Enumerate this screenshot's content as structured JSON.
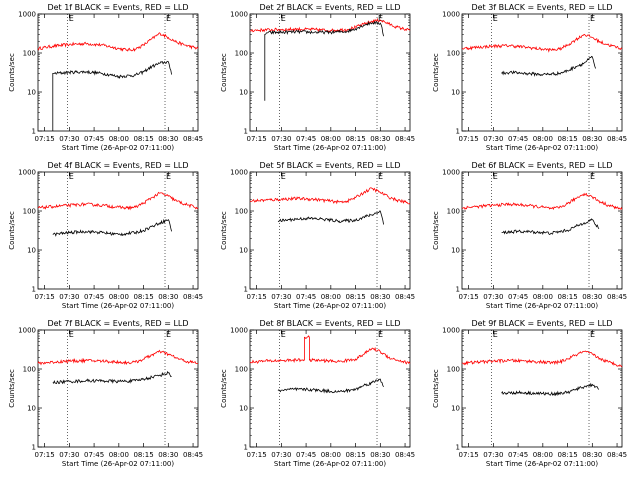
{
  "chart_data": [
    {
      "type": "line",
      "title": "Det 1f BLACK = Events, RED = LLD",
      "xlabel": "Start Time (26-Apr-02 07:11:00)",
      "ylabel": "Counts/sec",
      "yscale": "log",
      "ylim": [
        1,
        1000
      ],
      "y_ticks": [
        "1",
        "10",
        "100",
        "1000"
      ],
      "x_ticks": [
        "07:15",
        "07:30",
        "07:45",
        "08:00",
        "08:15",
        "08:30",
        "08:45"
      ],
      "markers": [
        "E",
        "E"
      ],
      "series": [
        {
          "name": "LLD",
          "color": "#ff0000",
          "x": [
            "07:11",
            "07:20",
            "07:30",
            "07:40",
            "07:50",
            "08:00",
            "08:05",
            "08:10",
            "08:15",
            "08:20",
            "08:25",
            "08:30",
            "08:35",
            "08:40",
            "08:48"
          ],
          "y": [
            130,
            150,
            165,
            175,
            160,
            130,
            120,
            125,
            160,
            230,
            320,
            250,
            190,
            160,
            130
          ]
        },
        {
          "name": "Events",
          "color": "#000000",
          "x": [
            "07:20",
            "07:20",
            "07:21",
            "07:30",
            "07:40",
            "07:50",
            "08:00",
            "08:10",
            "08:15",
            "08:20",
            "08:25",
            "08:30",
            "08:31",
            "08:32"
          ],
          "y": [
            1,
            30,
            30,
            32,
            33,
            30,
            25,
            27,
            33,
            45,
            55,
            60,
            40,
            28
          ]
        }
      ]
    },
    {
      "type": "line",
      "title": "Det 2f BLACK = Events, RED = LLD",
      "xlabel": "Start Time (26-Apr-02 07:11:00)",
      "ylabel": "Counts/sec",
      "yscale": "log",
      "ylim": [
        1,
        1000
      ],
      "y_ticks": [
        "1",
        "10",
        "100",
        "1000"
      ],
      "x_ticks": [
        "07:15",
        "07:30",
        "07:45",
        "08:00",
        "08:15",
        "08:30",
        "08:45"
      ],
      "markers": [
        "E",
        "E"
      ],
      "series": [
        {
          "name": "LLD",
          "color": "#ff0000",
          "x": [
            "07:11",
            "07:20",
            "07:30",
            "07:40",
            "07:50",
            "08:00",
            "08:10",
            "08:15",
            "08:20",
            "08:25",
            "08:30",
            "08:35",
            "08:40",
            "08:48"
          ],
          "y": [
            380,
            390,
            400,
            410,
            400,
            380,
            400,
            460,
            550,
            650,
            700,
            560,
            460,
            380
          ]
        },
        {
          "name": "Events",
          "color": "#000000",
          "x": [
            "07:20",
            "07:20",
            "07:21",
            "07:30",
            "07:40",
            "07:50",
            "08:00",
            "08:10",
            "08:15",
            "08:20",
            "08:25",
            "08:30",
            "08:31",
            "08:32"
          ],
          "y": [
            6,
            300,
            330,
            340,
            350,
            340,
            340,
            360,
            420,
            520,
            600,
            580,
            450,
            270
          ]
        }
      ]
    },
    {
      "type": "line",
      "title": "Det 3f BLACK = Events, RED = LLD",
      "xlabel": "Start Time (26-Apr-02 07:11:00)",
      "ylabel": "Counts/sec",
      "yscale": "log",
      "ylim": [
        1,
        1000
      ],
      "y_ticks": [
        "1",
        "10",
        "100",
        "1000"
      ],
      "x_ticks": [
        "07:15",
        "07:30",
        "07:45",
        "08:00",
        "08:15",
        "08:30",
        "08:45"
      ],
      "markers": [
        "E",
        "E"
      ],
      "series": [
        {
          "name": "LLD",
          "color": "#ff0000",
          "x": [
            "07:11",
            "07:20",
            "07:30",
            "07:40",
            "07:50",
            "08:00",
            "08:05",
            "08:10",
            "08:15",
            "08:20",
            "08:25",
            "08:30",
            "08:35",
            "08:40",
            "08:48"
          ],
          "y": [
            130,
            140,
            150,
            155,
            140,
            125,
            120,
            125,
            160,
            220,
            300,
            250,
            190,
            160,
            130
          ]
        },
        {
          "name": "Events",
          "color": "#000000",
          "x": [
            "07:35",
            "07:40",
            "07:50",
            "08:00",
            "08:10",
            "08:15",
            "08:20",
            "08:25",
            "08:30",
            "08:31",
            "08:32"
          ],
          "y": [
            30,
            32,
            30,
            28,
            30,
            35,
            45,
            55,
            80,
            55,
            40
          ]
        }
      ]
    },
    {
      "type": "line",
      "title": "Det 4f BLACK = Events, RED = LLD",
      "xlabel": "Start Time (26-Apr-02 07:11:00)",
      "ylabel": "Counts/sec",
      "yscale": "log",
      "ylim": [
        1,
        1000
      ],
      "y_ticks": [
        "1",
        "10",
        "100",
        "1000"
      ],
      "x_ticks": [
        "07:15",
        "07:30",
        "07:45",
        "08:00",
        "08:15",
        "08:30",
        "08:45"
      ],
      "markers": [
        "E",
        "E"
      ],
      "series": [
        {
          "name": "LLD",
          "color": "#ff0000",
          "x": [
            "07:11",
            "07:20",
            "07:30",
            "07:40",
            "07:50",
            "08:00",
            "08:05",
            "08:10",
            "08:15",
            "08:20",
            "08:25",
            "08:30",
            "08:35",
            "08:40",
            "08:48"
          ],
          "y": [
            120,
            130,
            140,
            150,
            140,
            125,
            120,
            125,
            160,
            220,
            290,
            240,
            180,
            150,
            120
          ]
        },
        {
          "name": "Events",
          "color": "#000000",
          "x": [
            "07:20",
            "07:30",
            "07:40",
            "07:50",
            "08:00",
            "08:10",
            "08:15",
            "08:20",
            "08:25",
            "08:30",
            "08:31",
            "08:32"
          ],
          "y": [
            25,
            28,
            30,
            28,
            25,
            28,
            32,
            40,
            50,
            60,
            45,
            30
          ]
        }
      ]
    },
    {
      "type": "line",
      "title": "Det 5f BLACK = Events, RED = LLD",
      "xlabel": "Start Time (26-Apr-02 07:11:00)",
      "ylabel": "Counts/sec",
      "yscale": "log",
      "ylim": [
        1,
        1000
      ],
      "y_ticks": [
        "1",
        "10",
        "100",
        "1000"
      ],
      "x_ticks": [
        "07:15",
        "07:30",
        "07:45",
        "08:00",
        "08:15",
        "08:30",
        "08:45"
      ],
      "markers": [
        "E",
        "E"
      ],
      "series": [
        {
          "name": "LLD",
          "color": "#ff0000",
          "x": [
            "07:11",
            "07:20",
            "07:30",
            "07:40",
            "07:50",
            "08:00",
            "08:05",
            "08:10",
            "08:15",
            "08:20",
            "08:25",
            "08:30",
            "08:35",
            "08:40",
            "08:48"
          ],
          "y": [
            180,
            190,
            200,
            210,
            200,
            180,
            170,
            180,
            220,
            300,
            380,
            300,
            230,
            190,
            160
          ]
        },
        {
          "name": "Events",
          "color": "#000000",
          "x": [
            "07:28",
            "07:35",
            "07:45",
            "07:55",
            "08:05",
            "08:15",
            "08:20",
            "08:25",
            "08:30",
            "08:31",
            "08:32"
          ],
          "y": [
            55,
            60,
            65,
            62,
            55,
            58,
            70,
            80,
            100,
            70,
            45
          ]
        }
      ]
    },
    {
      "type": "line",
      "title": "Det 6f BLACK = Events, RED = LLD",
      "xlabel": "Start Time (26-Apr-02 07:11:00)",
      "ylabel": "Counts/sec",
      "yscale": "log",
      "ylim": [
        1,
        1000
      ],
      "y_ticks": [
        "1",
        "10",
        "100",
        "1000"
      ],
      "x_ticks": [
        "07:15",
        "07:30",
        "07:45",
        "08:00",
        "08:15",
        "08:30",
        "08:45"
      ],
      "markers": [
        "E",
        "E"
      ],
      "series": [
        {
          "name": "LLD",
          "color": "#ff0000",
          "x": [
            "07:11",
            "07:20",
            "07:30",
            "07:40",
            "07:50",
            "08:00",
            "08:05",
            "08:10",
            "08:15",
            "08:20",
            "08:25",
            "08:30",
            "08:35",
            "08:40",
            "08:48"
          ],
          "y": [
            120,
            130,
            140,
            150,
            140,
            125,
            115,
            120,
            155,
            210,
            280,
            230,
            170,
            140,
            110
          ]
        },
        {
          "name": "Events",
          "color": "#000000",
          "x": [
            "07:35",
            "07:45",
            "07:55",
            "08:05",
            "08:15",
            "08:20",
            "08:25",
            "08:30",
            "08:32",
            "08:34"
          ],
          "y": [
            28,
            30,
            29,
            27,
            32,
            40,
            50,
            60,
            45,
            35
          ]
        }
      ]
    },
    {
      "type": "line",
      "title": "Det 7f BLACK = Events, RED = LLD",
      "xlabel": "Start Time (26-Apr-02 07:11:00)",
      "ylabel": "Counts/sec",
      "yscale": "log",
      "ylim": [
        1,
        1000
      ],
      "y_ticks": [
        "1",
        "10",
        "100",
        "1000"
      ],
      "x_ticks": [
        "07:15",
        "07:30",
        "07:45",
        "08:00",
        "08:15",
        "08:30",
        "08:45"
      ],
      "markers": [
        "E",
        "E"
      ],
      "series": [
        {
          "name": "LLD",
          "color": "#ff0000",
          "x": [
            "07:11",
            "07:20",
            "07:30",
            "07:40",
            "07:50",
            "08:00",
            "08:05",
            "08:10",
            "08:15",
            "08:20",
            "08:25",
            "08:30",
            "08:35",
            "08:40",
            "08:48"
          ],
          "y": [
            140,
            150,
            160,
            165,
            160,
            150,
            145,
            150,
            180,
            230,
            280,
            240,
            190,
            160,
            140
          ]
        },
        {
          "name": "Events",
          "color": "#000000",
          "x": [
            "07:20",
            "07:30",
            "07:40",
            "07:50",
            "08:00",
            "08:10",
            "08:15",
            "08:20",
            "08:25",
            "08:30",
            "08:31",
            "08:32"
          ],
          "y": [
            45,
            48,
            50,
            50,
            48,
            50,
            55,
            62,
            70,
            80,
            70,
            65
          ]
        }
      ]
    },
    {
      "type": "line",
      "title": "Det 8f BLACK = Events, RED = LLD",
      "xlabel": "Start Time (26-Apr-02 07:11:00)",
      "ylabel": "Counts/sec",
      "yscale": "log",
      "ylim": [
        1,
        1000
      ],
      "y_ticks": [
        "1",
        "10",
        "100",
        "1000"
      ],
      "x_ticks": [
        "07:15",
        "07:30",
        "07:45",
        "08:00",
        "08:15",
        "08:30",
        "08:45"
      ],
      "markers": [
        "E",
        "E"
      ],
      "series": [
        {
          "name": "LLD",
          "color": "#ff0000",
          "x": [
            "07:11",
            "07:20",
            "07:30",
            "07:40",
            "07:44",
            "07:44",
            "07:47",
            "07:47",
            "07:55",
            "08:05",
            "08:15",
            "08:20",
            "08:25",
            "08:30",
            "08:35",
            "08:40",
            "08:48"
          ],
          "y": [
            150,
            160,
            165,
            170,
            170,
            650,
            650,
            170,
            165,
            155,
            180,
            240,
            340,
            280,
            200,
            170,
            140
          ]
        },
        {
          "name": "Events",
          "color": "#000000",
          "x": [
            "07:28",
            "07:35",
            "07:45",
            "07:55",
            "08:05",
            "08:15",
            "08:20",
            "08:25",
            "08:30",
            "08:31",
            "08:32"
          ],
          "y": [
            28,
            30,
            30,
            28,
            26,
            30,
            38,
            45,
            55,
            45,
            35
          ]
        }
      ]
    },
    {
      "type": "line",
      "title": "Det 9f BLACK = Events, RED = LLD",
      "xlabel": "Start Time (26-Apr-02 07:11:00)",
      "ylabel": "Counts/sec",
      "yscale": "log",
      "ylim": [
        1,
        1000
      ],
      "y_ticks": [
        "1",
        "10",
        "100",
        "1000"
      ],
      "x_ticks": [
        "07:15",
        "07:30",
        "07:45",
        "08:00",
        "08:15",
        "08:30",
        "08:45"
      ],
      "markers": [
        "E",
        "E"
      ],
      "series": [
        {
          "name": "LLD",
          "color": "#ff0000",
          "x": [
            "07:11",
            "07:20",
            "07:30",
            "07:40",
            "07:50",
            "08:00",
            "08:05",
            "08:10",
            "08:15",
            "08:20",
            "08:25",
            "08:30",
            "08:35",
            "08:40",
            "08:48"
          ],
          "y": [
            140,
            150,
            160,
            165,
            160,
            150,
            145,
            150,
            180,
            230,
            280,
            240,
            180,
            150,
            120
          ]
        },
        {
          "name": "Events",
          "color": "#000000",
          "x": [
            "07:35",
            "07:45",
            "07:55",
            "08:05",
            "08:15",
            "08:20",
            "08:25",
            "08:30",
            "08:32",
            "08:34"
          ],
          "y": [
            24,
            25,
            24,
            23,
            25,
            30,
            35,
            40,
            35,
            30
          ]
        }
      ]
    }
  ]
}
